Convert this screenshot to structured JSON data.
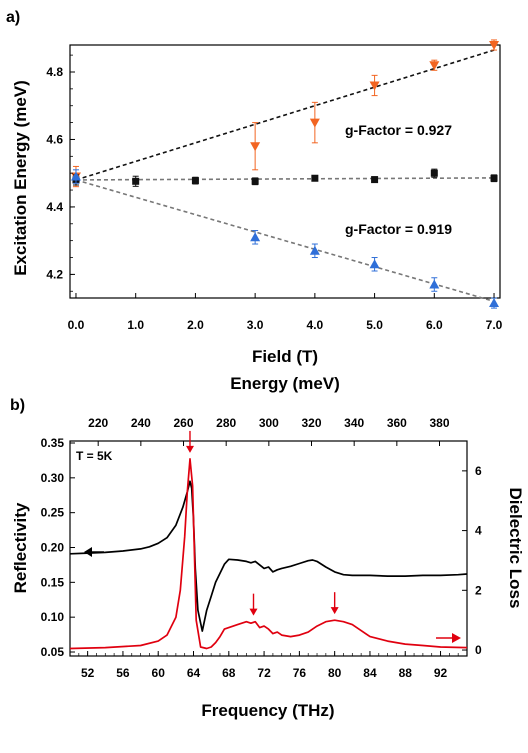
{
  "chart_data": [
    {
      "panel_label": "a)",
      "type": "scatter",
      "xlabel": "Field (T)",
      "ylabel": "Excitation Energy (meV)",
      "xlim": [
        -0.1,
        7.1
      ],
      "ylim": [
        4.13,
        4.88
      ],
      "xticks": [
        "0.0",
        "1.0",
        "2.0",
        "3.0",
        "4.0",
        "5.0",
        "6.0",
        "7.0"
      ],
      "yticks": [
        "4.2",
        "4.4",
        "4.6",
        "4.8"
      ],
      "series": [
        {
          "color": "#f26522",
          "marker": "triangle-down",
          "x": [
            0,
            3,
            4,
            5,
            6,
            7
          ],
          "y": [
            4.49,
            4.58,
            4.65,
            4.76,
            4.82,
            4.88
          ],
          "err": [
            0.03,
            0.07,
            0.06,
            0.03,
            0.015,
            0.015
          ]
        },
        {
          "color": "#111111",
          "marker": "square",
          "x": [
            0,
            1,
            2,
            3,
            4,
            5,
            6,
            7
          ],
          "y": [
            4.48,
            4.476,
            4.478,
            4.476,
            4.485,
            4.481,
            4.5,
            4.485
          ],
          "err": [
            0.015,
            0.015,
            0.01,
            0.01,
            0.008,
            0.008,
            0.012,
            0.01
          ]
        },
        {
          "color": "#2f6fd8",
          "marker": "triangle-up",
          "x": [
            0,
            3,
            4,
            5,
            6,
            7
          ],
          "y": [
            4.49,
            4.31,
            4.27,
            4.23,
            4.17,
            4.115
          ],
          "err": [
            0.02,
            0.02,
            0.02,
            0.02,
            0.02,
            0.015
          ]
        }
      ],
      "fit_lines": [
        {
          "color": "#111111",
          "x": [
            0,
            7
          ],
          "y": [
            4.48,
            4.865
          ]
        },
        {
          "color": "#777777",
          "x": [
            0,
            7
          ],
          "y": [
            4.48,
            4.486
          ]
        },
        {
          "color": "#777777",
          "x": [
            0,
            7
          ],
          "y": [
            4.48,
            4.12
          ]
        }
      ],
      "annotations": [
        "g-Factor = 0.927",
        "g-Factor = 0.919"
      ]
    },
    {
      "panel_label": "b)",
      "type": "line",
      "xlabel": "Frequency (THz)",
      "top_xlabel": "Energy (meV)",
      "ylabel_left": "Reflectivity",
      "ylabel_right": "Dielectric Loss",
      "xlim": [
        50,
        95
      ],
      "ylim_left": [
        0.05,
        0.35
      ],
      "ylim_right": [
        -0.2,
        7.0
      ],
      "xticks": [
        "52",
        "56",
        "60",
        "64",
        "68",
        "72",
        "76",
        "80",
        "84",
        "88",
        "92"
      ],
      "top_ticks": [
        "220",
        "240",
        "260",
        "280",
        "300",
        "320",
        "340",
        "360",
        "380"
      ],
      "yticks_left": [
        "0.05",
        "0.10",
        "0.15",
        "0.20",
        "0.25",
        "0.30",
        "0.35"
      ],
      "yticks_right": [
        "0",
        "2",
        "4",
        "6"
      ],
      "temperature_label": "T = 5K",
      "series": [
        {
          "color": "#000000",
          "axis": "left",
          "x": [
            50,
            52,
            54,
            56,
            58,
            59,
            60,
            61,
            62,
            62.8,
            63.3,
            63.6,
            63.8,
            64.0,
            64.2,
            64.5,
            65,
            65.5,
            66,
            66.5,
            67,
            67.5,
            68,
            69,
            70,
            70.5,
            71,
            71.5,
            72,
            72.5,
            73,
            73.5,
            74,
            75,
            76,
            77,
            77.5,
            78,
            79,
            80,
            81,
            82,
            84,
            86,
            88,
            90,
            92,
            94,
            95
          ],
          "y": [
            0.191,
            0.192,
            0.193,
            0.195,
            0.198,
            0.201,
            0.206,
            0.214,
            0.232,
            0.258,
            0.28,
            0.295,
            0.285,
            0.24,
            0.17,
            0.11,
            0.08,
            0.11,
            0.13,
            0.15,
            0.163,
            0.176,
            0.183,
            0.182,
            0.18,
            0.178,
            0.18,
            0.175,
            0.17,
            0.172,
            0.165,
            0.168,
            0.17,
            0.173,
            0.177,
            0.181,
            0.182,
            0.18,
            0.172,
            0.165,
            0.161,
            0.16,
            0.16,
            0.159,
            0.159,
            0.16,
            0.16,
            0.161,
            0.162
          ]
        },
        {
          "color": "#e0000f",
          "axis": "right",
          "x": [
            50,
            54,
            58,
            60,
            61,
            62,
            62.5,
            63,
            63.3,
            63.6,
            63.9,
            64.3,
            64.8,
            65.5,
            66,
            66.5,
            67,
            67.5,
            68,
            69,
            70,
            70.5,
            71,
            71.5,
            72,
            72.5,
            73,
            73.5,
            74,
            75,
            76,
            77,
            78,
            79,
            80,
            81,
            82,
            83,
            84,
            86,
            88,
            90,
            92,
            95
          ],
          "y": [
            0.05,
            0.08,
            0.15,
            0.3,
            0.5,
            1.1,
            2.0,
            3.8,
            5.3,
            6.4,
            5.5,
            1.0,
            0.1,
            0.05,
            0.1,
            0.25,
            0.45,
            0.7,
            0.75,
            0.85,
            0.95,
            0.9,
            0.95,
            0.75,
            0.8,
            0.7,
            0.55,
            0.6,
            0.5,
            0.45,
            0.5,
            0.6,
            0.8,
            0.95,
            1.0,
            0.95,
            0.85,
            0.65,
            0.45,
            0.3,
            0.2,
            0.15,
            0.1,
            0.08
          ]
        }
      ],
      "peak_markers_x": [
        63.6,
        70.8,
        80.0
      ]
    }
  ]
}
